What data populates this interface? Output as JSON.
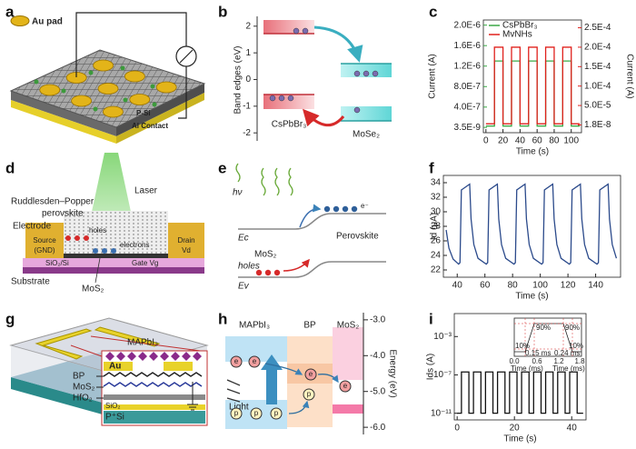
{
  "panel_labels": [
    "a",
    "b",
    "c",
    "d",
    "e",
    "f",
    "g",
    "h",
    "i"
  ],
  "panel_a": {
    "au_pad": "Au pad",
    "p_si": "P-Si",
    "al_contact": "Al Contact"
  },
  "panel_b": {
    "y_label": "Band edges (eV)",
    "ylim": [
      -2.3,
      2.3
    ],
    "yticks": [
      -2,
      -1,
      0,
      1,
      2
    ],
    "left_material": "CsPbBr₃",
    "right_material": "MoSe₂"
  },
  "panel_d": {
    "laser": "Laser",
    "perovskite_1": "Ruddlesden–Popper",
    "perovskite_2": "perovskite",
    "electrode": "Electrode",
    "source": "Source",
    "gnd": "(GND)",
    "drain": "Drain",
    "vd": "Vd",
    "holes": "holes",
    "electrons": "electrons",
    "sio2": "SiO₂/Si",
    "gate": "Gate Vg",
    "substrate": "Substrate",
    "mos2": "MoS₂"
  },
  "panel_e": {
    "hv": "hν",
    "electron": "e⁻",
    "ec": "Ec",
    "ev": "Ev",
    "mos2": "MoS₂",
    "holes": "holes",
    "perovskite": "Perovskite"
  },
  "panel_g": {
    "mapbi3": "MAPbI₃",
    "au": "Au",
    "bp": "BP",
    "mos2": "MoS₂",
    "hfo2": "HfO₂",
    "sio2": "SiO₂",
    "psi": "P⁺Si"
  },
  "panel_h": {
    "mapbi3": "MAPbI₃",
    "bp": "BP",
    "mos2": "MoS₂",
    "light": "Light",
    "energy_label": "Energy (eV)",
    "energy_lim": [
      -2.8,
      -6.2
    ],
    "energy_ticks": [
      {
        "value": -3,
        "label": "-3.0"
      },
      {
        "value": -4,
        "label": "-4.0"
      },
      {
        "value": -5,
        "label": "-5.0"
      },
      {
        "value": -6,
        "label": "-6.0"
      }
    ],
    "electron": "e",
    "hole": "p"
  },
  "panel_i_inset": {
    "level_90": "90%",
    "level_10": "10%",
    "rise_time": "0.15 ms",
    "fall_time": "0.24 ms",
    "xticks": [
      "0.0",
      "0.6",
      "1.2",
      "1.8"
    ],
    "x_label": "Time (ms)"
  },
  "chart_data": [
    {
      "type": "line",
      "x_label": "Time (s)",
      "y_label": "Current (A)",
      "y2_label": "Current (A)",
      "legend": "upper left",
      "xlim": [
        -3,
        112
      ],
      "xticks": [
        0,
        20,
        40,
        60,
        80,
        100
      ],
      "ylim": [
        -1e-07,
        2.1e-06
      ],
      "yticks": [
        {
          "value": 3.5e-09,
          "label": "3.5E-9"
        },
        {
          "value": 4e-07,
          "label": "4.0E-7"
        },
        {
          "value": 8e-07,
          "label": "8.0E-7"
        },
        {
          "value": 1.2e-06,
          "label": "1.2E-6"
        },
        {
          "value": 1.6e-06,
          "label": "1.6E-6"
        },
        {
          "value": 2e-06,
          "label": "2.0E-6"
        }
      ],
      "y2lim": [
        -2e-05,
        0.00027
      ],
      "y2ticks": [
        {
          "value": 1.8e-08,
          "label": "1.8E-8"
        },
        {
          "value": 5e-05,
          "label": "5.0E-5"
        },
        {
          "value": 0.0001,
          "label": "1.0E-4"
        },
        {
          "value": 0.00015,
          "label": "1.5E-4"
        },
        {
          "value": 0.0002,
          "label": "2.0E-4"
        },
        {
          "value": 0.00025,
          "label": "2.5E-4"
        }
      ],
      "x": [
        0,
        10,
        10,
        20,
        20,
        30,
        30,
        40,
        40,
        50,
        50,
        60,
        60,
        70,
        70,
        80,
        80,
        90,
        90,
        100,
        100,
        110
      ],
      "series": [
        {
          "name": "CsPbBr₃",
          "color": "#3aa845",
          "values": [
            3e-08,
            3e-08,
            1.3e-06,
            1.3e-06,
            3e-08,
            3e-08,
            1.3e-06,
            1.3e-06,
            3e-08,
            3e-08,
            1.3e-06,
            1.3e-06,
            3e-08,
            3e-08,
            1.3e-06,
            1.3e-06,
            3e-08,
            3e-08,
            1.3e-06,
            1.3e-06,
            3e-08,
            3e-08
          ]
        },
        {
          "name": "MvNHs",
          "color": "#e0201c",
          "axis": "y2",
          "values": [
            3e-06,
            3e-06,
            0.0002,
            0.0002,
            3e-06,
            3e-06,
            0.0002,
            0.0002,
            3e-06,
            3e-06,
            0.0002,
            0.0002,
            3e-06,
            3e-06,
            0.0002,
            0.0002,
            3e-06,
            3e-06,
            0.0002,
            0.0002,
            3e-06,
            3e-06
          ]
        }
      ]
    },
    {
      "type": "line",
      "x_label": "Time (s)",
      "y_label": "Id (μA)",
      "color": "#2b4a8b",
      "xlim": [
        30,
        158
      ],
      "xticks": [
        40,
        60,
        80,
        100,
        120,
        140
      ],
      "ylim": [
        21,
        35
      ],
      "yticks": [
        22,
        24,
        26,
        28,
        30,
        32,
        34
      ],
      "x": [
        32,
        34,
        37,
        41,
        42,
        43,
        49,
        50,
        52,
        55,
        61,
        62,
        63,
        69,
        70,
        72,
        75,
        81,
        82,
        83,
        89,
        90,
        92,
        95,
        101,
        102,
        103,
        109,
        110,
        112,
        115,
        121,
        122,
        123,
        129,
        130,
        132,
        135,
        141,
        142,
        143,
        149,
        150,
        152,
        155
      ],
      "values": [
        27.5,
        25,
        23.5,
        22.8,
        23,
        33,
        33.8,
        29,
        25.5,
        23.6,
        22.8,
        23,
        33,
        33.8,
        29,
        25.5,
        23.6,
        22.8,
        23,
        33,
        33.8,
        29,
        25.5,
        23.6,
        22.8,
        23,
        33,
        33.8,
        29,
        25.5,
        23.6,
        22.8,
        23,
        33,
        33.8,
        29,
        25.5,
        23.6,
        22.8,
        23,
        33,
        33.8,
        29,
        25.5,
        23.6
      ]
    },
    {
      "type": "line",
      "x_label": "Time (s)",
      "y_label": "Ids (A)",
      "color": "#111111",
      "log": true,
      "xlim": [
        -1,
        45
      ],
      "xticks": [
        0,
        20,
        40
      ],
      "ylim": [
        2e-12,
        0.25
      ],
      "yticks": [
        {
          "value": 1e-11,
          "label": "10⁻¹¹"
        },
        {
          "value": 1e-07,
          "label": "10⁻⁷"
        },
        {
          "value": 0.001,
          "label": "10⁻³"
        }
      ],
      "x": [
        0,
        1.5,
        1.5,
        4.1,
        4.1,
        5.7,
        5.7,
        8.3,
        8.3,
        9.9,
        9.9,
        12.5,
        12.5,
        14.1,
        14.1,
        16.7,
        16.7,
        18.3,
        18.3,
        20.9,
        20.9,
        22.5,
        22.5,
        25.1,
        25.1,
        26.7,
        26.7,
        29.3,
        29.3,
        30.9,
        30.9,
        33.5,
        33.5,
        35.1,
        35.1,
        37.7,
        37.7,
        39.3,
        39.3,
        41.9,
        41.9,
        44
      ],
      "values": [
        1e-11,
        1e-11,
        2e-07,
        2e-07,
        1e-11,
        1e-11,
        2e-07,
        2e-07,
        1e-11,
        1e-11,
        2e-07,
        2e-07,
        1e-11,
        1e-11,
        2e-07,
        2e-07,
        1e-11,
        1e-11,
        2e-07,
        2e-07,
        1e-11,
        1e-11,
        2e-07,
        2e-07,
        1e-11,
        1e-11,
        2e-07,
        2e-07,
        1e-11,
        1e-11,
        2e-07,
        2e-07,
        1e-11,
        1e-11,
        2e-07,
        2e-07,
        1e-11,
        1e-11,
        2e-07,
        2e-07,
        1e-11,
        1e-11
      ]
    }
  ]
}
